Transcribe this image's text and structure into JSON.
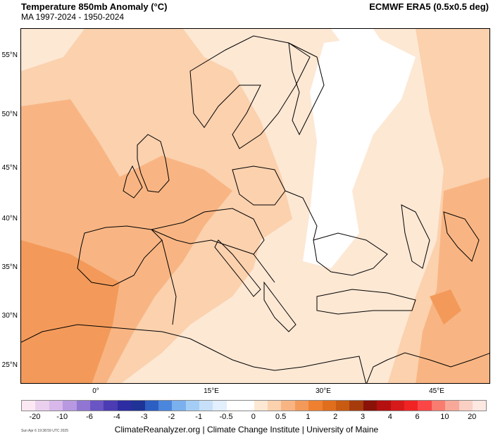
{
  "header": {
    "title": "Temperature 850mb Anomaly (°C)",
    "subtitle": "MA 1997-2024 - 1950-2024",
    "dataset": "ECMWF ERA5 (0.5x0.5 deg)"
  },
  "axes": {
    "lat_labels": [
      "55°N",
      "50°N",
      "45°N",
      "40°N",
      "35°N",
      "30°N",
      "25°N"
    ],
    "lon_labels": [
      "0°",
      "15°E",
      "30°E",
      "45°E"
    ]
  },
  "colorbar": {
    "labels": [
      "-20",
      "-10",
      "-6",
      "-4",
      "-3",
      "-2",
      "-1",
      "-0.5",
      "0",
      "0.5",
      "1",
      "2",
      "3",
      "4",
      "6",
      "10",
      "20"
    ],
    "colors": [
      "#fce8f2",
      "#ead0ee",
      "#d8b8ea",
      "#b898e0",
      "#9075d2",
      "#6a55c4",
      "#4b3cb4",
      "#2e2ca2",
      "#1f3296",
      "#2d5ec2",
      "#4a86dc",
      "#7ab0ee",
      "#a4cdf6",
      "#c6e0fa",
      "#e2effc",
      "#ffffff",
      "#ffffff",
      "#fde8d4",
      "#fbd1ae",
      "#f8b583",
      "#f39a5a",
      "#ee8030",
      "#e06e1c",
      "#c85a12",
      "#a63c0c",
      "#8a1208",
      "#b41010",
      "#d61a1a",
      "#f02424",
      "#fb4646",
      "#f87c70",
      "#f8a898",
      "#fbd0c4",
      "#fde8e2"
    ]
  },
  "stamp": "Sun Apr 6 19:38:59 UTC 2025",
  "footer": "ClimateReanalyzer.org | Climate Change Institute | University of Maine"
}
